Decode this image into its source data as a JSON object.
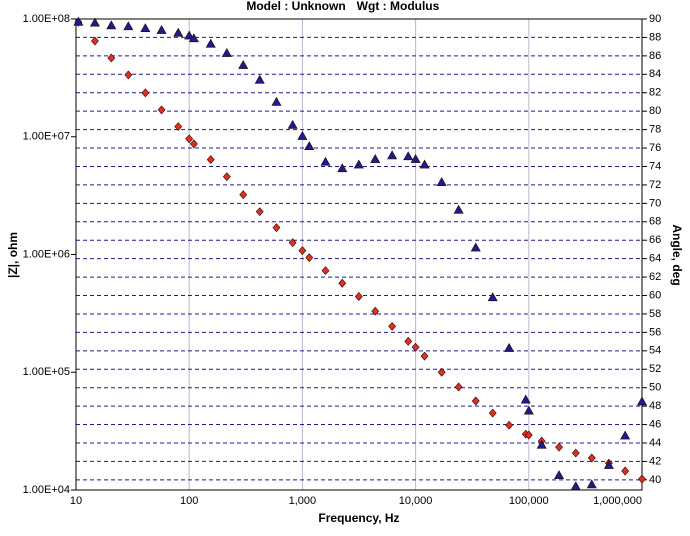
{
  "chart_data": {
    "type": "scatter",
    "title": "Model : Unknown",
    "subtitle": "Wgt : Modulus",
    "x_label": "Frequency,  Hz",
    "y_label": "|Z|, ohm",
    "y2_label": "Angle, deg",
    "x_log": true,
    "y_log": true,
    "xlim": [
      10,
      1000000
    ],
    "xticks": [
      10,
      100,
      {
        "value": 1000,
        "label": "1,000"
      },
      {
        "value": 10000,
        "label": "10,000"
      },
      {
        "value": 100000,
        "label": "100,000"
      },
      {
        "value": 1000000,
        "label": "1,000,000"
      }
    ],
    "ylim": [
      10000,
      100000000
    ],
    "yticks": [
      {
        "value": 10000,
        "label": "1.00E+04"
      },
      {
        "value": 100000,
        "label": "1.00E+05"
      },
      {
        "value": 1000000,
        "label": "1.00E+06"
      },
      {
        "value": 10000000,
        "label": "1.00E+07"
      },
      {
        "value": 100000000,
        "label": "1.00E+08"
      }
    ],
    "y2lim": [
      38.9,
      90
    ],
    "y2ticks": [
      40,
      42,
      44,
      46,
      48,
      50,
      52,
      54,
      56,
      58,
      60,
      62,
      64,
      66,
      68,
      70,
      72,
      74,
      76,
      78,
      80,
      82,
      84,
      86,
      88,
      90
    ],
    "grid": true,
    "x": [
      10.5,
      14.7,
      20.5,
      29,
      41,
      57,
      80,
      100,
      110,
      155,
      215,
      300,
      420,
      590,
      820,
      1000,
      1150,
      1600,
      2250,
      3150,
      4400,
      6200,
      8600,
      10000,
      12000,
      17000,
      24000,
      34000,
      48000,
      67000,
      94000,
      100000,
      130000,
      185000,
      260000,
      360000,
      510000,
      710000,
      1000000
    ],
    "series": [
      {
        "color": "#e0301e",
        "marker": "diamond",
        "values": [
          94000000,
          65000000,
          46700000,
          33500000,
          23600000,
          16900000,
          12200000,
          9600000,
          8700000,
          6400000,
          4580000,
          3220000,
          2310000,
          1690000,
          1260000,
          1080000,
          940000,
          730000,
          570000,
          440000,
          330000,
          245000,
          183000,
          163000,
          137000,
          100000,
          75000,
          57000,
          45000,
          35500,
          29800,
          29300,
          26000,
          23100,
          20600,
          18700,
          16900,
          14500,
          12400
        ]
      },
      {
        "color": "#1c1c8e",
        "marker": "triangle",
        "axis": "y2",
        "values": [
          89.7,
          89.6,
          89.3,
          89.2,
          89.0,
          88.8,
          88.5,
          88.2,
          87.9,
          87.3,
          86.3,
          85.0,
          83.4,
          81.0,
          78.5,
          77.3,
          76.2,
          74.5,
          73.8,
          74.2,
          74.8,
          75.2,
          75.1,
          74.8,
          74.2,
          72.3,
          69.3,
          65.2,
          59.8,
          54.3,
          48.7,
          47.5,
          43.8,
          40.5,
          39.3,
          39.5,
          41.6,
          44.8,
          48.5
        ]
      }
    ]
  }
}
